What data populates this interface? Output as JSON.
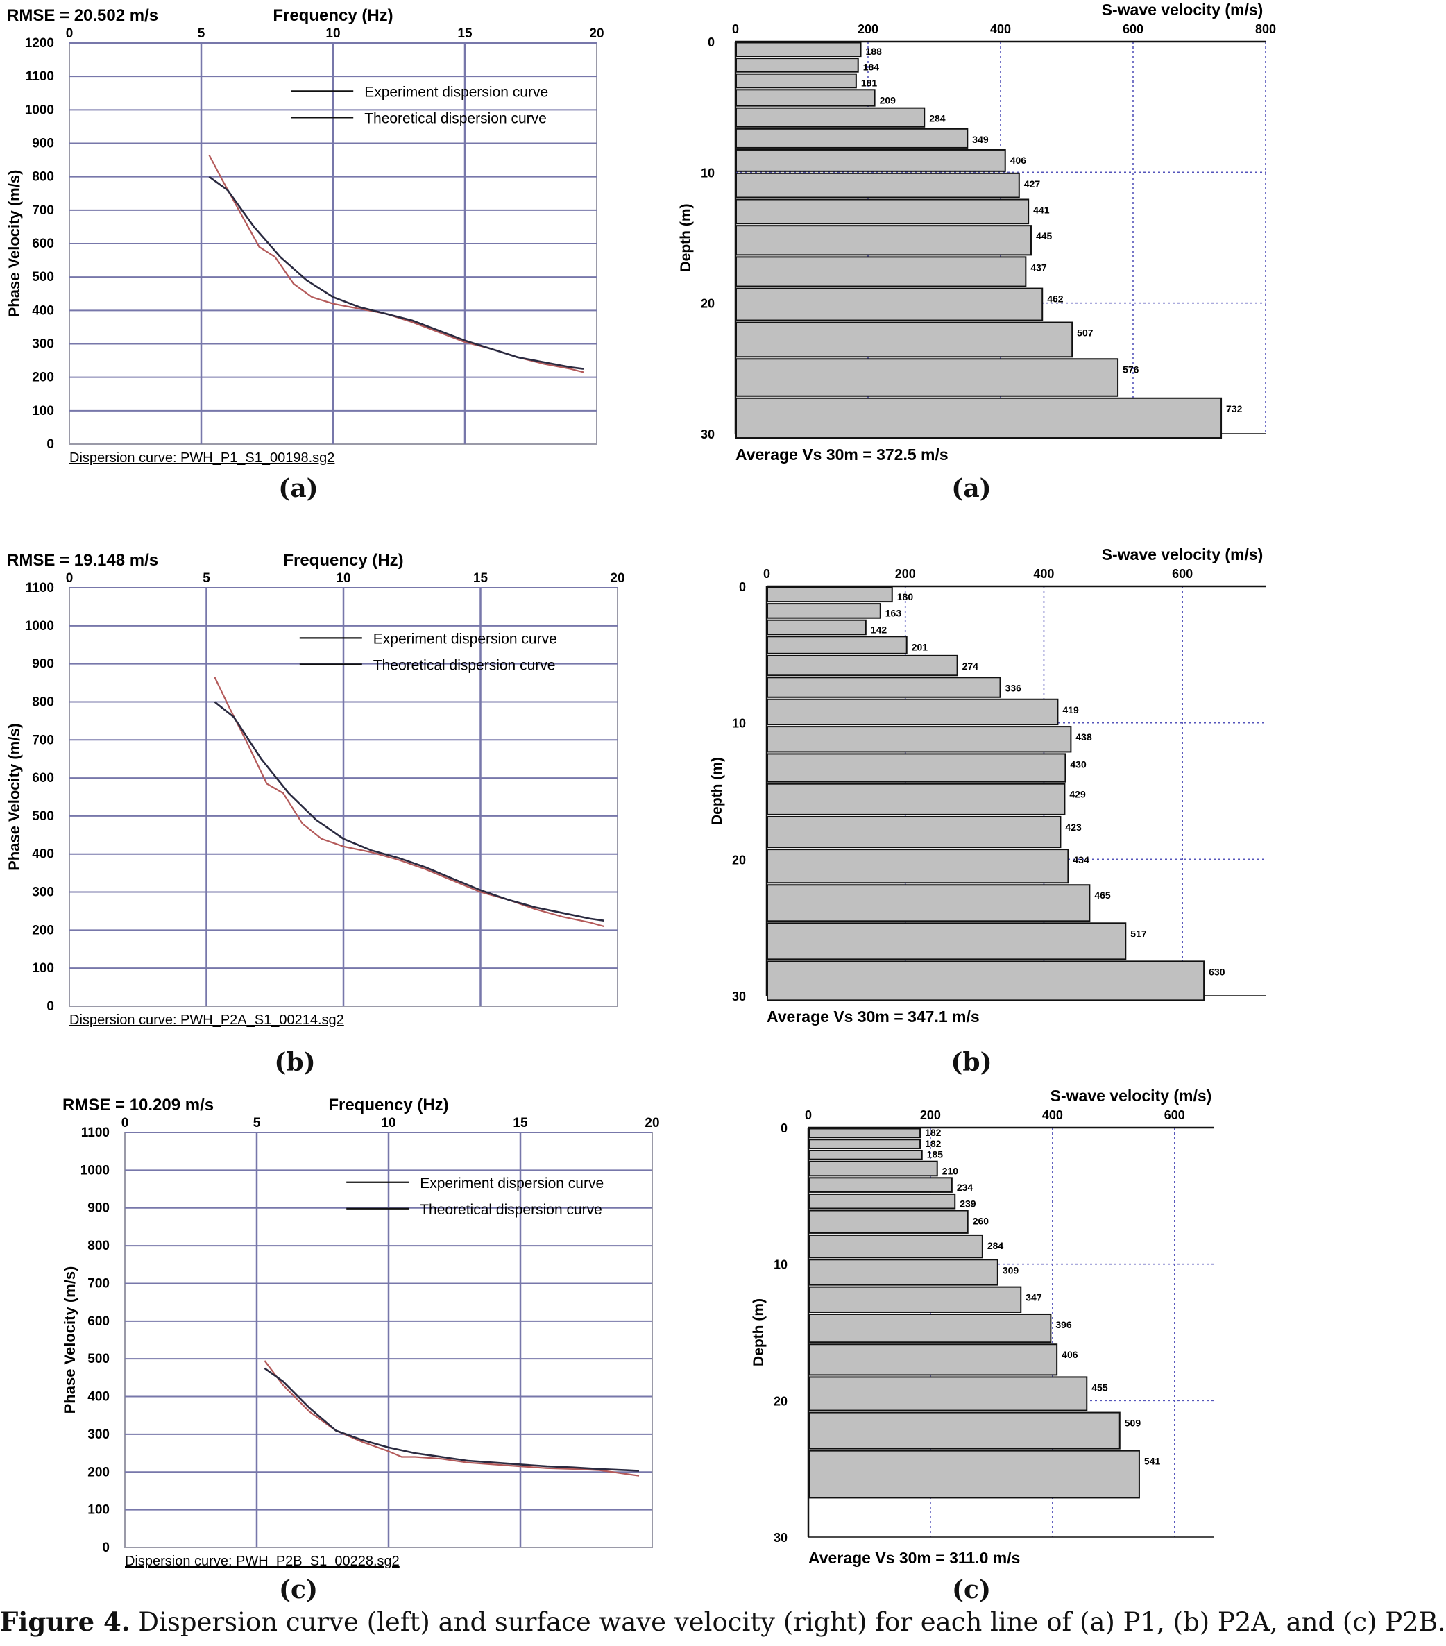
{
  "caption": {
    "label": "Figure 4.",
    "text": "Dispersion curve (left) and surface wave velocity (right) for each line of (a) P1, (b) P2A, and (c) P2B."
  },
  "chart_data": [
    {
      "type": "line",
      "panel_label": "(a)",
      "rmse_text": "RMSE = 20.502 m/s",
      "xlabel": "Frequency (Hz)",
      "ylabel": "Phase Velocity (m/s)",
      "xlim": [
        0,
        20
      ],
      "ylim": [
        0,
        1200
      ],
      "xticks": [
        0,
        5,
        10,
        15,
        20
      ],
      "yticks": [
        0,
        100,
        200,
        300,
        400,
        500,
        600,
        700,
        800,
        900,
        1000,
        1100,
        1200
      ],
      "legend_position": "top-right",
      "grid": true,
      "footer": "Dispersion curve: PWH_P1_S1_00198.sg2",
      "series": [
        {
          "name": "Experiment dispersion curve",
          "color": "#b45a5a",
          "x": [
            5.3,
            5.8,
            6.5,
            7.2,
            7.8,
            8.5,
            9.2,
            10,
            11,
            12,
            13,
            14,
            15,
            16,
            17,
            18,
            19,
            19.5
          ],
          "y": [
            865,
            790,
            690,
            590,
            560,
            480,
            440,
            420,
            405,
            390,
            365,
            335,
            305,
            285,
            260,
            240,
            225,
            215
          ]
        },
        {
          "name": "Theoretical dispersion curve",
          "color": "#2a2a40",
          "x": [
            5.3,
            6,
            7,
            8,
            9,
            10,
            11,
            12,
            13,
            14,
            15,
            16,
            17,
            18,
            19,
            19.5
          ],
          "y": [
            800,
            760,
            650,
            560,
            490,
            440,
            410,
            390,
            370,
            340,
            310,
            285,
            260,
            245,
            230,
            225
          ]
        }
      ]
    },
    {
      "type": "bar",
      "panel_label": "(a)",
      "xlabel": "S-wave velocity (m/s)",
      "ylabel": "Depth (m)",
      "xlim": [
        0,
        800
      ],
      "ylim": [
        0,
        30
      ],
      "xticks": [
        0,
        200,
        400,
        600,
        800
      ],
      "yticks": [
        0,
        10,
        20,
        30
      ],
      "grid": true,
      "average_text": "Average Vs 30m = 372.5 m/s",
      "layers": [
        {
          "top": 0.0,
          "bottom": 1.2,
          "vs": 188
        },
        {
          "top": 1.2,
          "bottom": 2.4,
          "vs": 184
        },
        {
          "top": 2.4,
          "bottom": 3.6,
          "vs": 181
        },
        {
          "top": 3.6,
          "bottom": 5.0,
          "vs": 209
        },
        {
          "top": 5.0,
          "bottom": 6.6,
          "vs": 284
        },
        {
          "top": 6.6,
          "bottom": 8.2,
          "vs": 349
        },
        {
          "top": 8.2,
          "bottom": 10.0,
          "vs": 406
        },
        {
          "top": 10.0,
          "bottom": 12.0,
          "vs": 427
        },
        {
          "top": 12.0,
          "bottom": 14.0,
          "vs": 441
        },
        {
          "top": 14.0,
          "bottom": 16.4,
          "vs": 445
        },
        {
          "top": 16.4,
          "bottom": 18.8,
          "vs": 437
        },
        {
          "top": 18.8,
          "bottom": 21.4,
          "vs": 462
        },
        {
          "top": 21.4,
          "bottom": 24.2,
          "vs": 507
        },
        {
          "top": 24.2,
          "bottom": 27.2,
          "vs": 576
        },
        {
          "top": 27.2,
          "bottom": 30.4,
          "vs": 732
        }
      ]
    },
    {
      "type": "line",
      "panel_label": "(b)",
      "rmse_text": "RMSE = 19.148 m/s",
      "xlabel": "Frequency (Hz)",
      "ylabel": "Phase Velocity (m/s)",
      "xlim": [
        0,
        20
      ],
      "ylim": [
        0,
        1100
      ],
      "xticks": [
        0,
        5,
        10,
        15,
        20
      ],
      "yticks": [
        0,
        100,
        200,
        300,
        400,
        500,
        600,
        700,
        800,
        900,
        1000,
        1100
      ],
      "legend_position": "top-right",
      "grid": true,
      "footer": "Dispersion curve: PWH_P2A_S1_00214.sg2",
      "series": [
        {
          "name": "Experiment dispersion curve",
          "color": "#b45a5a",
          "x": [
            5.3,
            5.8,
            6.5,
            7.2,
            7.8,
            8.5,
            9.2,
            10,
            11,
            12,
            13,
            14,
            15,
            16,
            17,
            18,
            19,
            19.5
          ],
          "y": [
            865,
            790,
            690,
            585,
            560,
            480,
            440,
            420,
            405,
            385,
            360,
            330,
            300,
            280,
            255,
            235,
            220,
            210
          ]
        },
        {
          "name": "Theoretical dispersion curve",
          "color": "#2a2a40",
          "x": [
            5.3,
            6,
            7,
            8,
            9,
            10,
            11,
            12,
            13,
            14,
            15,
            16,
            17,
            18,
            19,
            19.5
          ],
          "y": [
            800,
            760,
            650,
            560,
            490,
            440,
            410,
            390,
            365,
            335,
            305,
            280,
            260,
            245,
            230,
            225
          ]
        }
      ]
    },
    {
      "type": "bar",
      "panel_label": "(b)",
      "xlabel": "S-wave velocity (m/s)",
      "ylabel": "Depth (m)",
      "xlim": [
        0,
        720
      ],
      "ylim": [
        0,
        30
      ],
      "xticks": [
        0,
        200,
        400,
        600
      ],
      "yticks": [
        0,
        10,
        20,
        30
      ],
      "grid": true,
      "average_text": "Average Vs 30m = 347.1 m/s",
      "layers": [
        {
          "top": 0.0,
          "bottom": 1.2,
          "vs": 180
        },
        {
          "top": 1.2,
          "bottom": 2.4,
          "vs": 163
        },
        {
          "top": 2.4,
          "bottom": 3.6,
          "vs": 142
        },
        {
          "top": 3.6,
          "bottom": 5.0,
          "vs": 201
        },
        {
          "top": 5.0,
          "bottom": 6.6,
          "vs": 274
        },
        {
          "top": 6.6,
          "bottom": 8.2,
          "vs": 336
        },
        {
          "top": 8.2,
          "bottom": 10.2,
          "vs": 419
        },
        {
          "top": 10.2,
          "bottom": 12.2,
          "vs": 438
        },
        {
          "top": 12.2,
          "bottom": 14.4,
          "vs": 430
        },
        {
          "top": 14.4,
          "bottom": 16.8,
          "vs": 429
        },
        {
          "top": 16.8,
          "bottom": 19.2,
          "vs": 423
        },
        {
          "top": 19.2,
          "bottom": 21.8,
          "vs": 434
        },
        {
          "top": 21.8,
          "bottom": 24.6,
          "vs": 465
        },
        {
          "top": 24.6,
          "bottom": 27.4,
          "vs": 517
        },
        {
          "top": 27.4,
          "bottom": 30.4,
          "vs": 630
        }
      ]
    },
    {
      "type": "line",
      "panel_label": "(c)",
      "rmse_text": "RMSE = 10.209 m/s",
      "xlabel": "Frequency (Hz)",
      "ylabel": "Phase Velocity (m/s)",
      "xlim": [
        0,
        20
      ],
      "ylim": [
        0,
        1100
      ],
      "xticks": [
        0,
        5,
        10,
        15,
        20
      ],
      "yticks": [
        0,
        100,
        200,
        300,
        400,
        500,
        600,
        700,
        800,
        900,
        1000,
        1100
      ],
      "legend_position": "top-right",
      "grid": true,
      "footer": "Dispersion curve: PWH_P2B_S1_00228.sg2",
      "series": [
        {
          "name": "Experiment dispersion curve",
          "color": "#b45a5a",
          "x": [
            5.3,
            6,
            7,
            8,
            9,
            10,
            10.5,
            11,
            12,
            13,
            14,
            15,
            16,
            17,
            18,
            19,
            19.5
          ],
          "y": [
            495,
            430,
            360,
            310,
            280,
            255,
            240,
            240,
            235,
            225,
            220,
            215,
            210,
            208,
            205,
            195,
            190
          ]
        },
        {
          "name": "Theoretical dispersion curve",
          "color": "#2a2a40",
          "x": [
            5.3,
            6,
            7,
            8,
            9,
            10,
            11,
            12,
            13,
            14,
            15,
            16,
            17,
            18,
            19,
            19.5
          ],
          "y": [
            475,
            440,
            370,
            310,
            285,
            265,
            250,
            240,
            230,
            225,
            220,
            215,
            212,
            208,
            205,
            203
          ]
        }
      ]
    },
    {
      "type": "bar",
      "panel_label": "(c)",
      "xlabel": "S-wave velocity (m/s)",
      "ylabel": "Depth (m)",
      "xlim": [
        0,
        665
      ],
      "ylim": [
        0,
        30
      ],
      "xticks": [
        0,
        200,
        400,
        600
      ],
      "yticks": [
        0,
        10,
        20,
        30
      ],
      "grid": true,
      "average_text": "Average Vs 30m = 311.0 m/s",
      "layers": [
        {
          "top": 0.0,
          "bottom": 0.8,
          "vs": 182
        },
        {
          "top": 0.8,
          "bottom": 1.6,
          "vs": 182
        },
        {
          "top": 1.6,
          "bottom": 2.4,
          "vs": 185
        },
        {
          "top": 2.4,
          "bottom": 3.6,
          "vs": 210
        },
        {
          "top": 3.6,
          "bottom": 4.8,
          "vs": 234
        },
        {
          "top": 4.8,
          "bottom": 6.0,
          "vs": 239
        },
        {
          "top": 6.0,
          "bottom": 7.8,
          "vs": 260
        },
        {
          "top": 7.8,
          "bottom": 9.6,
          "vs": 284
        },
        {
          "top": 9.6,
          "bottom": 11.6,
          "vs": 309
        },
        {
          "top": 11.6,
          "bottom": 13.6,
          "vs": 347
        },
        {
          "top": 13.6,
          "bottom": 15.8,
          "vs": 396
        },
        {
          "top": 15.8,
          "bottom": 18.2,
          "vs": 406
        },
        {
          "top": 18.2,
          "bottom": 20.8,
          "vs": 455
        },
        {
          "top": 20.8,
          "bottom": 23.6,
          "vs": 509
        },
        {
          "top": 23.6,
          "bottom": 27.2,
          "vs": 541
        }
      ]
    }
  ]
}
